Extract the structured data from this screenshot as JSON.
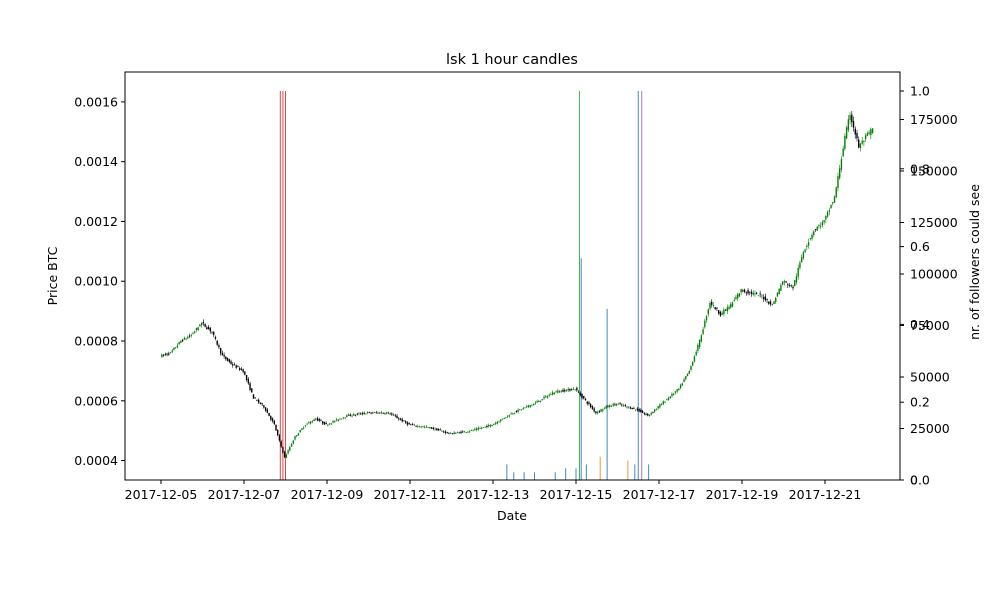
{
  "chart_data": {
    "type": "candlestick",
    "title": "lsk 1 hour candles",
    "xlabel": "Date",
    "ylabel": "Price BTC",
    "y2label": "nr. of followers could see",
    "ylim": [
      0.000335,
      0.0017
    ],
    "y_ticks": [
      "0.0004",
      "0.0006",
      "0.0008",
      "0.0010",
      "0.0012",
      "0.0014",
      "0.0016"
    ],
    "y2_ticks": [
      "0",
      "25000",
      "50000",
      "75000",
      "100000",
      "125000",
      "150000",
      "175000"
    ],
    "y3_ticks": [
      "0.0",
      "0.2",
      "0.4",
      "0.6",
      "0.8",
      "1.0"
    ],
    "x_ticks": [
      "2017-12-05",
      "2017-12-07",
      "2017-12-09",
      "2017-12-11",
      "2017-12-13",
      "2017-12-15",
      "2017-12-17",
      "2017-12-19",
      "2017-12-21"
    ],
    "grid": false,
    "colors": {
      "up": "#008000",
      "down": "#000000",
      "bar_blue": "#1f77b4",
      "bar_orange": "#ff7f0e",
      "bar_green": "#2ca02c",
      "bar_red": "#d62728",
      "bar_purple": "#9467bd"
    },
    "price_path": [
      [
        "2017-12-05",
        0.00075
      ],
      [
        "2017-12-05 06:00",
        0.00076
      ],
      [
        "2017-12-05 12:00",
        0.0008
      ],
      [
        "2017-12-05 18:00",
        0.00082
      ],
      [
        "2017-12-06",
        0.00086
      ],
      [
        "2017-12-06 06:00",
        0.00083
      ],
      [
        "2017-12-06 12:00",
        0.00075
      ],
      [
        "2017-12-06 18:00",
        0.00072
      ],
      [
        "2017-12-07",
        0.0007
      ],
      [
        "2017-12-07 06:00",
        0.00061
      ],
      [
        "2017-12-07 12:00",
        0.00058
      ],
      [
        "2017-12-07 18:00",
        0.00052
      ],
      [
        "2017-12-08",
        0.00041
      ],
      [
        "2017-12-08 06:00",
        0.00048
      ],
      [
        "2017-12-08 12:00",
        0.00052
      ],
      [
        "2017-12-08 18:00",
        0.00054
      ],
      [
        "2017-12-09",
        0.00052
      ],
      [
        "2017-12-09 12:00",
        0.00055
      ],
      [
        "2017-12-10",
        0.00056
      ],
      [
        "2017-12-10 12:00",
        0.00056
      ],
      [
        "2017-12-11",
        0.00052
      ],
      [
        "2017-12-11 12:00",
        0.00051
      ],
      [
        "2017-12-12",
        0.00049
      ],
      [
        "2017-12-12 12:00",
        0.0005
      ],
      [
        "2017-12-13",
        0.00052
      ],
      [
        "2017-12-13 12:00",
        0.00056
      ],
      [
        "2017-12-14",
        0.00059
      ],
      [
        "2017-12-14 12:00",
        0.00063
      ],
      [
        "2017-12-15",
        0.00064
      ],
      [
        "2017-12-15 06:00",
        0.0006
      ],
      [
        "2017-12-15 12:00",
        0.00056
      ],
      [
        "2017-12-15 18:00",
        0.00058
      ],
      [
        "2017-12-16",
        0.00059
      ],
      [
        "2017-12-16 12:00",
        0.00057
      ],
      [
        "2017-12-16 18:00",
        0.00055
      ],
      [
        "2017-12-17",
        0.00058
      ],
      [
        "2017-12-17 12:00",
        0.00064
      ],
      [
        "2017-12-17 18:00",
        0.0007
      ],
      [
        "2017-12-18",
        0.0008
      ],
      [
        "2017-12-18 06:00",
        0.00093
      ],
      [
        "2017-12-18 12:00",
        0.00089
      ],
      [
        "2017-12-18 18:00",
        0.00092
      ],
      [
        "2017-12-19",
        0.00097
      ],
      [
        "2017-12-19 12:00",
        0.00095
      ],
      [
        "2017-12-19 18:00",
        0.00092
      ],
      [
        "2017-12-20",
        0.001
      ],
      [
        "2017-12-20 06:00",
        0.00098
      ],
      [
        "2017-12-20 12:00",
        0.0011
      ],
      [
        "2017-12-20 18:00",
        0.00117
      ],
      [
        "2017-12-21",
        0.0012
      ],
      [
        "2017-12-21 06:00",
        0.00128
      ],
      [
        "2017-12-21 12:00",
        0.00148
      ],
      [
        "2017-12-21 15:00",
        0.00156
      ],
      [
        "2017-12-21 20:00",
        0.00145
      ],
      [
        "2017-12-22",
        0.00148
      ],
      [
        "2017-12-22 04:00",
        0.00151
      ]
    ],
    "follower_bars": [
      {
        "x": "2017-12-07 21:00",
        "value": 1.0,
        "color": "bar_red"
      },
      {
        "x": "2017-12-07 22:30",
        "value": 1.0,
        "color": "bar_red"
      },
      {
        "x": "2017-12-08 00:00",
        "value": 1.0,
        "color": "bar_red"
      },
      {
        "x": "2017-12-13 08:00",
        "value": 0.04,
        "color": "bar_blue"
      },
      {
        "x": "2017-12-13 12:00",
        "value": 0.02,
        "color": "bar_blue"
      },
      {
        "x": "2017-12-13 18:00",
        "value": 0.02,
        "color": "bar_blue"
      },
      {
        "x": "2017-12-14 00:00",
        "value": 0.02,
        "color": "bar_blue"
      },
      {
        "x": "2017-12-14 12:00",
        "value": 0.02,
        "color": "bar_blue"
      },
      {
        "x": "2017-12-14 18:00",
        "value": 0.03,
        "color": "bar_blue"
      },
      {
        "x": "2017-12-15 00:00",
        "value": 0.03,
        "color": "bar_blue"
      },
      {
        "x": "2017-12-15 02:00",
        "value": 1.0,
        "color": "bar_green"
      },
      {
        "x": "2017-12-15 03:00",
        "value": 0.57,
        "color": "bar_blue"
      },
      {
        "x": "2017-12-15 06:00",
        "value": 0.04,
        "color": "bar_blue"
      },
      {
        "x": "2017-12-15 14:00",
        "value": 0.06,
        "color": "bar_orange"
      },
      {
        "x": "2017-12-15 18:00",
        "value": 0.44,
        "color": "bar_blue"
      },
      {
        "x": "2017-12-16 06:00",
        "value": 0.05,
        "color": "bar_orange"
      },
      {
        "x": "2017-12-16 10:00",
        "value": 0.04,
        "color": "bar_blue"
      },
      {
        "x": "2017-12-16 12:00",
        "value": 1.0,
        "color": "bar_blue"
      },
      {
        "x": "2017-12-16 14:00",
        "value": 1.0,
        "color": "bar_purple"
      },
      {
        "x": "2017-12-16 18:00",
        "value": 0.04,
        "color": "bar_blue"
      }
    ]
  }
}
